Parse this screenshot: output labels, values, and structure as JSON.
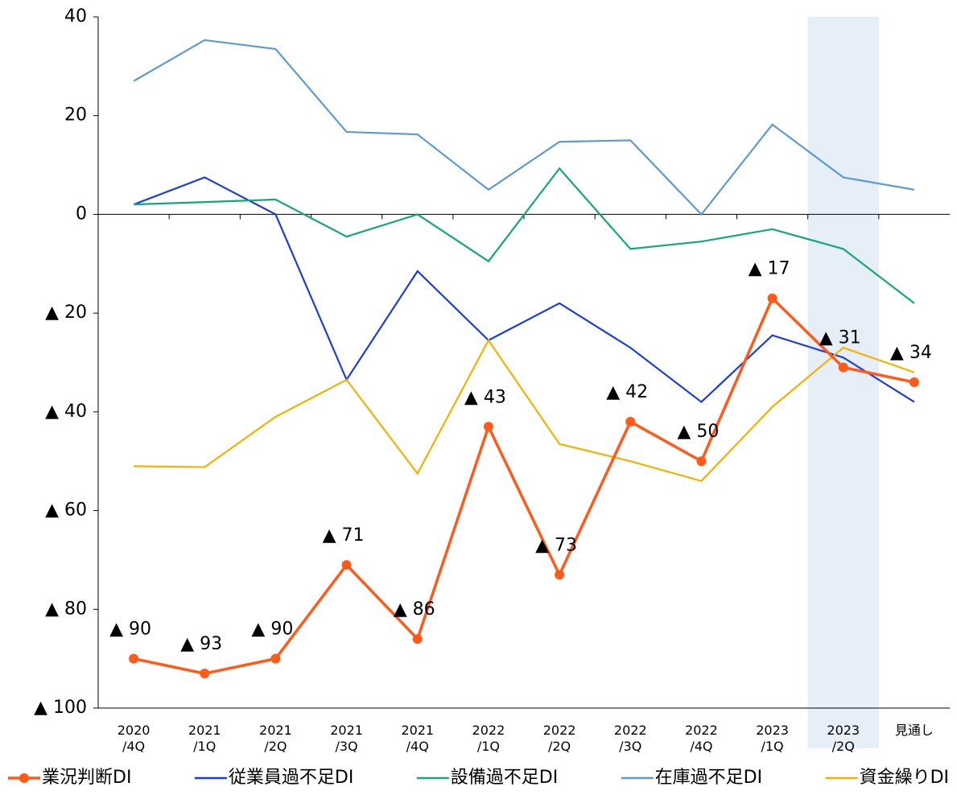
{
  "chart_data": {
    "type": "line",
    "categories": [
      "2020\n/4Q",
      "2021\n/1Q",
      "2021\n/2Q",
      "2021\n/3Q",
      "2021\n/4Q",
      "2022\n/1Q",
      "2022\n/2Q",
      "2022\n/3Q",
      "2022\n/4Q",
      "2023\n/1Q",
      "2023\n/2Q",
      "見通し"
    ],
    "ylim": [
      -100,
      40
    ],
    "yticks": [
      {
        "value": -100,
        "label": "▲ 100"
      },
      {
        "value": -80,
        "label": "▲ 80"
      },
      {
        "value": -60,
        "label": "▲ 60"
      },
      {
        "value": -40,
        "label": "▲ 40"
      },
      {
        "value": -20,
        "label": "▲ 20"
      },
      0,
      20,
      40
    ],
    "highlight_index": 10,
    "legend": "bottom",
    "series": [
      {
        "name": "業況判断DI",
        "color": "#ff5a1a",
        "markers": true,
        "values": [
          -90,
          -93,
          -90,
          -71,
          -86,
          -43,
          -73,
          -42,
          -50,
          -17,
          -31,
          -34
        ],
        "value_labels": [
          "▲ 90",
          "▲ 93",
          "▲ 90",
          "▲ 71",
          "▲ 86",
          "▲ 43",
          "▲ 73",
          "▲ 42",
          "▲ 50",
          "▲ 17",
          "▲ 31",
          "▲ 34"
        ]
      },
      {
        "name": "従業員過不足DI",
        "color": "#1a3de0",
        "values": [
          2,
          7.5,
          0,
          -33.5,
          -11.5,
          -25.5,
          -18,
          -27,
          -38,
          -24.5,
          -29,
          -38
        ]
      },
      {
        "name": "設備過不足DI",
        "color": "#13a878",
        "values": [
          2,
          2.5,
          3,
          -4.5,
          0,
          -9.5,
          9.3,
          -7,
          -5.5,
          -3,
          -7,
          -18
        ]
      },
      {
        "name": "在庫過不足DI",
        "color": "#5b9bd5",
        "values": [
          27,
          35.3,
          33.5,
          16.7,
          16.2,
          5,
          14.7,
          15,
          0,
          18.2,
          7.5,
          5
        ]
      },
      {
        "name": "資金繰りDI",
        "color": "#f5b000",
        "values": [
          -51,
          -51.2,
          -41,
          -33.5,
          -52.5,
          -25.5,
          -46.5,
          -50,
          -54,
          -39,
          -27,
          -32
        ]
      }
    ]
  }
}
